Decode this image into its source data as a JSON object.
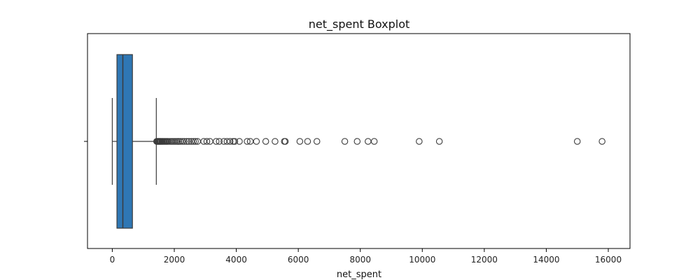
{
  "chart_data": {
    "type": "boxplot",
    "title": "net_spent Boxplot",
    "xlabel": "net_spent",
    "ylabel": "",
    "xlim": [
      -800,
      16700
    ],
    "xticks": [
      0,
      2000,
      4000,
      6000,
      8000,
      10000,
      12000,
      14000,
      16000
    ],
    "xtick_labels": [
      "0",
      "2000",
      "4000",
      "6000",
      "8000",
      "10000",
      "12000",
      "14000",
      "16000"
    ],
    "grid": false,
    "orientation": "horizontal",
    "box": {
      "whisker_low": 0,
      "q1": 150,
      "median": 340,
      "q3": 650,
      "whisker_high": 1420
    },
    "outliers": [
      1430,
      1450,
      1470,
      1490,
      1510,
      1530,
      1550,
      1570,
      1600,
      1620,
      1650,
      1680,
      1710,
      1740,
      1770,
      1800,
      1850,
      1900,
      1950,
      2000,
      2050,
      2100,
      2150,
      2200,
      2260,
      2320,
      2400,
      2470,
      2550,
      2620,
      2680,
      2750,
      2950,
      3050,
      3150,
      3350,
      3450,
      3600,
      3700,
      3800,
      3900,
      3950,
      4100,
      4350,
      4450,
      4650,
      4950,
      5250,
      5550,
      5580,
      6050,
      6300,
      6600,
      7500,
      7900,
      8250,
      8450,
      9900,
      10550,
      15000,
      15800
    ],
    "colors": {
      "box_fill": "#2f77b4",
      "line": "#3b3b3b",
      "outlier_edge": "#3b3b3b"
    }
  }
}
